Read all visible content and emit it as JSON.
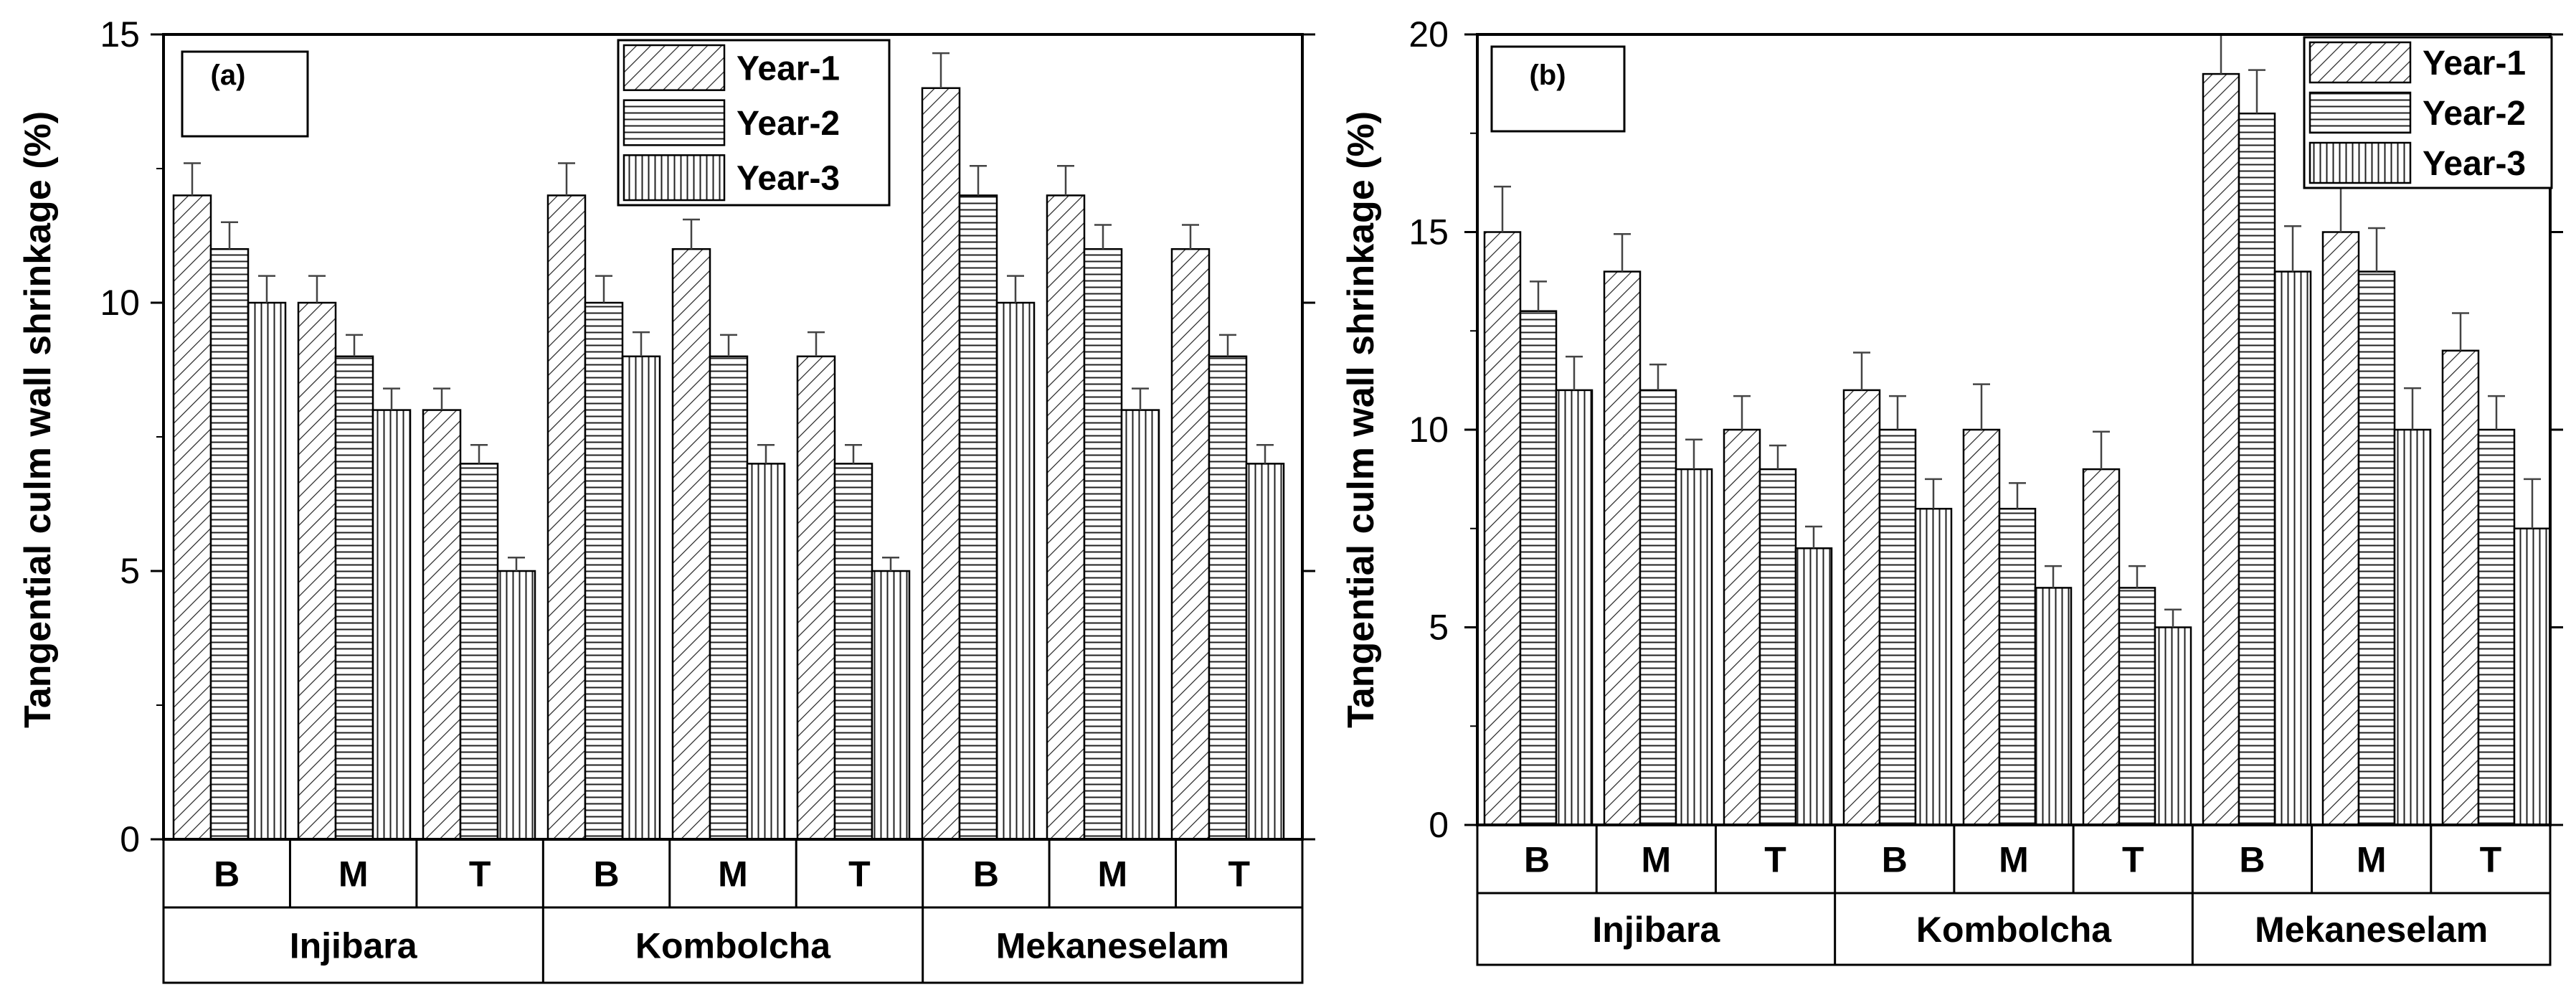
{
  "chart_data": [
    {
      "type": "bar",
      "panel_label": "(a)",
      "ylabel": "Tangential culm wall shrinkage (%)",
      "ylim": [
        0,
        15
      ],
      "yticks": [
        "0",
        "5",
        "10",
        "15"
      ],
      "sub_categories": [
        "B",
        "M",
        "T",
        "B",
        "M",
        "T",
        "B",
        "M",
        "T"
      ],
      "groups": [
        "Injibara",
        "Kombolcha",
        "Mekaneselam"
      ],
      "legend": {
        "position": "top-right",
        "entries": [
          "Year-1",
          "Year-2",
          "Year-3"
        ]
      },
      "series": [
        {
          "name": "Year-1",
          "values": [
            12,
            10,
            8,
            12,
            11,
            9,
            14,
            12,
            11
          ],
          "errors": [
            0.6,
            0.5,
            0.4,
            0.6,
            0.55,
            0.45,
            0.65,
            0.55,
            0.45
          ]
        },
        {
          "name": "Year-2",
          "values": [
            11,
            9,
            7,
            10,
            9,
            7,
            12,
            11,
            9
          ],
          "errors": [
            0.5,
            0.4,
            0.35,
            0.5,
            0.4,
            0.35,
            0.55,
            0.45,
            0.4
          ]
        },
        {
          "name": "Year-3",
          "values": [
            10,
            8,
            5,
            9,
            7,
            5,
            10,
            8,
            7
          ],
          "errors": [
            0.5,
            0.4,
            0.25,
            0.45,
            0.35,
            0.25,
            0.5,
            0.4,
            0.35
          ]
        }
      ]
    },
    {
      "type": "bar",
      "panel_label": "(b)",
      "ylabel": "Tangential culm wall shrinkage (%)",
      "ylim": [
        0,
        20
      ],
      "yticks": [
        "0",
        "5",
        "10",
        "15",
        "20"
      ],
      "sub_categories": [
        "B",
        "M",
        "T",
        "B",
        "M",
        "T",
        "B",
        "M",
        "T"
      ],
      "groups": [
        "Injibara",
        "Kombolcha",
        "Mekaneselam"
      ],
      "legend": {
        "position": "top-right",
        "entries": [
          "Year-1",
          "Year-2",
          "Year-3"
        ]
      },
      "series": [
        {
          "name": "Year-1",
          "values": [
            15,
            14,
            10,
            11,
            10,
            9,
            19,
            15,
            12
          ],
          "errors": [
            1.15,
            0.95,
            0.85,
            0.95,
            1.15,
            0.95,
            1.0,
            1.2,
            0.95
          ]
        },
        {
          "name": "Year-2",
          "values": [
            13,
            11,
            9,
            10,
            8,
            6,
            18,
            14,
            10
          ],
          "errors": [
            0.75,
            0.65,
            0.6,
            0.85,
            0.65,
            0.55,
            1.1,
            1.1,
            0.85
          ]
        },
        {
          "name": "Year-3",
          "values": [
            11,
            9,
            7,
            8,
            6,
            5,
            14,
            10,
            7.5
          ],
          "errors": [
            0.85,
            0.75,
            0.55,
            0.75,
            0.55,
            0.45,
            1.15,
            1.05,
            1.25
          ]
        }
      ]
    }
  ]
}
